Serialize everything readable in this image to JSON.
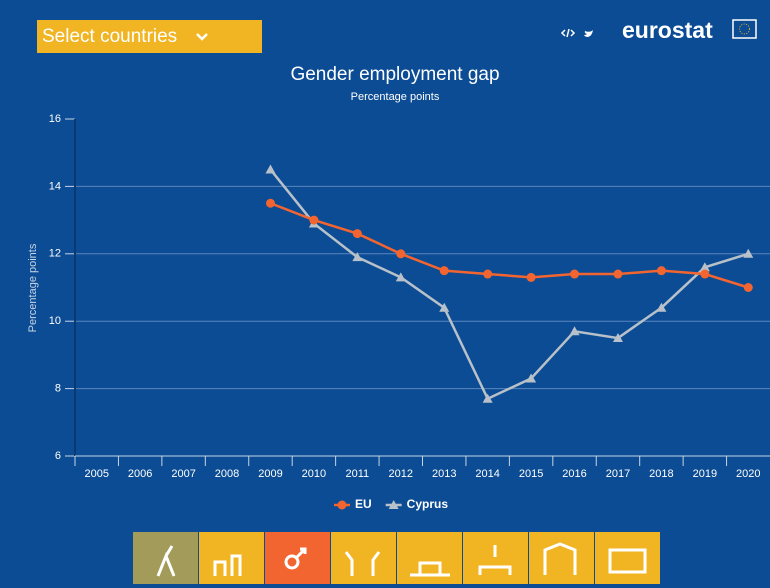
{
  "header": {
    "select_label": "Select countries",
    "logo": "eurostat"
  },
  "chart_data": {
    "type": "line",
    "title": "Gender employment gap",
    "subtitle": "Percentage points",
    "y_label": "Percentage points",
    "categories": [
      "2005",
      "2006",
      "2007",
      "2008",
      "2009",
      "2010",
      "2011",
      "2012",
      "2013",
      "2014",
      "2015",
      "2016",
      "2017",
      "2018",
      "2019",
      "2020"
    ],
    "series": [
      {
        "name": "EU",
        "color": "#f26531",
        "marker": "circle",
        "values": [
          null,
          null,
          null,
          null,
          13.5,
          13.0,
          12.6,
          12.0,
          11.5,
          11.4,
          11.3,
          11.4,
          11.4,
          11.5,
          11.4,
          11.0
        ]
      },
      {
        "name": "Cyprus",
        "color": "#b8c0c9",
        "marker": "triangle",
        "values": [
          null,
          null,
          null,
          null,
          14.5,
          12.9,
          11.9,
          11.3,
          10.4,
          7.7,
          8.3,
          9.7,
          9.5,
          10.4,
          11.6,
          12.0
        ]
      }
    ],
    "ylim": [
      6,
      16
    ],
    "yticks": [
      6,
      8,
      10,
      12,
      14,
      16
    ],
    "grid": true,
    "legend": "bottom"
  }
}
